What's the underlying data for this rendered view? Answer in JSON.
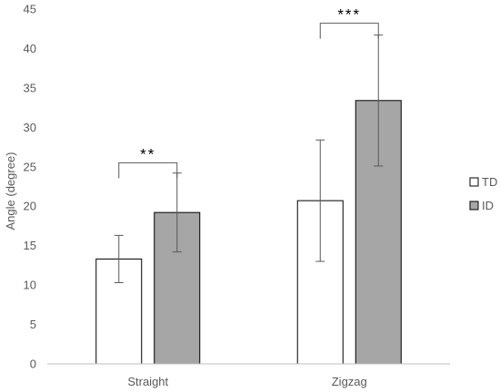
{
  "chart_data": {
    "type": "bar",
    "categories": [
      "Straight",
      "Zigzag"
    ],
    "series": [
      {
        "name": "TD",
        "values": [
          13.3,
          20.7
        ],
        "error": [
          3.0,
          7.7
        ],
        "color": "#ffffff",
        "stroke": "#000000"
      },
      {
        "name": "ID",
        "values": [
          19.2,
          33.4
        ],
        "error": [
          5.0,
          8.3
        ],
        "color": "#a6a6a6",
        "stroke": "#000000"
      }
    ],
    "ylabel": "Angle (degree)",
    "xlabel": "",
    "ylim": [
      0,
      45
    ],
    "yticks": [
      0,
      5,
      10,
      15,
      20,
      25,
      30,
      35,
      40,
      45
    ],
    "grid": false,
    "legend": "right",
    "significance": [
      {
        "category": "Straight",
        "label": "**",
        "level": 25.5
      },
      {
        "category": "Zigzag",
        "label": "***",
        "level": 43.2
      }
    ],
    "colors": {
      "axis": "#bfbfbf",
      "error_bar": "#595959",
      "text": "#595959"
    }
  }
}
